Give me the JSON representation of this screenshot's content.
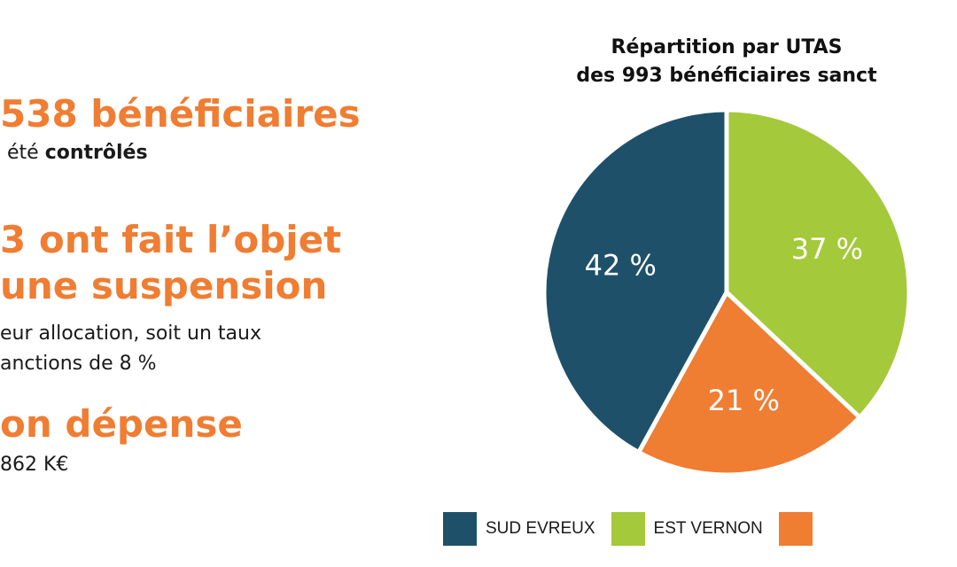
{
  "left": {
    "line1": "538 bénéficiaires",
    "line2_prefix": "été ",
    "line2_bold": "contrôlés",
    "line3": "3 ont fait l’objet",
    "line4": "une suspension",
    "line5": "eur allocation, soit un taux",
    "line6": "anctions de 8 %",
    "line7": "on dépense",
    "line8": "862 K€"
  },
  "chart_data": {
    "type": "pie",
    "title_line1": "Répartition par UTAS",
    "title_line2": "des 993  bénéficiaires sanct",
    "slices": [
      {
        "label": "EST VERNON",
        "value": 37,
        "display": "37 %",
        "color": "#a4c93a"
      },
      {
        "label": "",
        "value": 21,
        "display": "21 %",
        "color": "#ef7d32"
      },
      {
        "label": "SUD EVREUX",
        "value": 42,
        "display": "42 %",
        "color": "#1e5169"
      }
    ],
    "legend": [
      {
        "label": "SUD EVREUX",
        "color": "#1e5169"
      },
      {
        "label": "EST VERNON",
        "color": "#a4c93a"
      },
      {
        "label": "",
        "color": "#ef7d32"
      }
    ]
  }
}
